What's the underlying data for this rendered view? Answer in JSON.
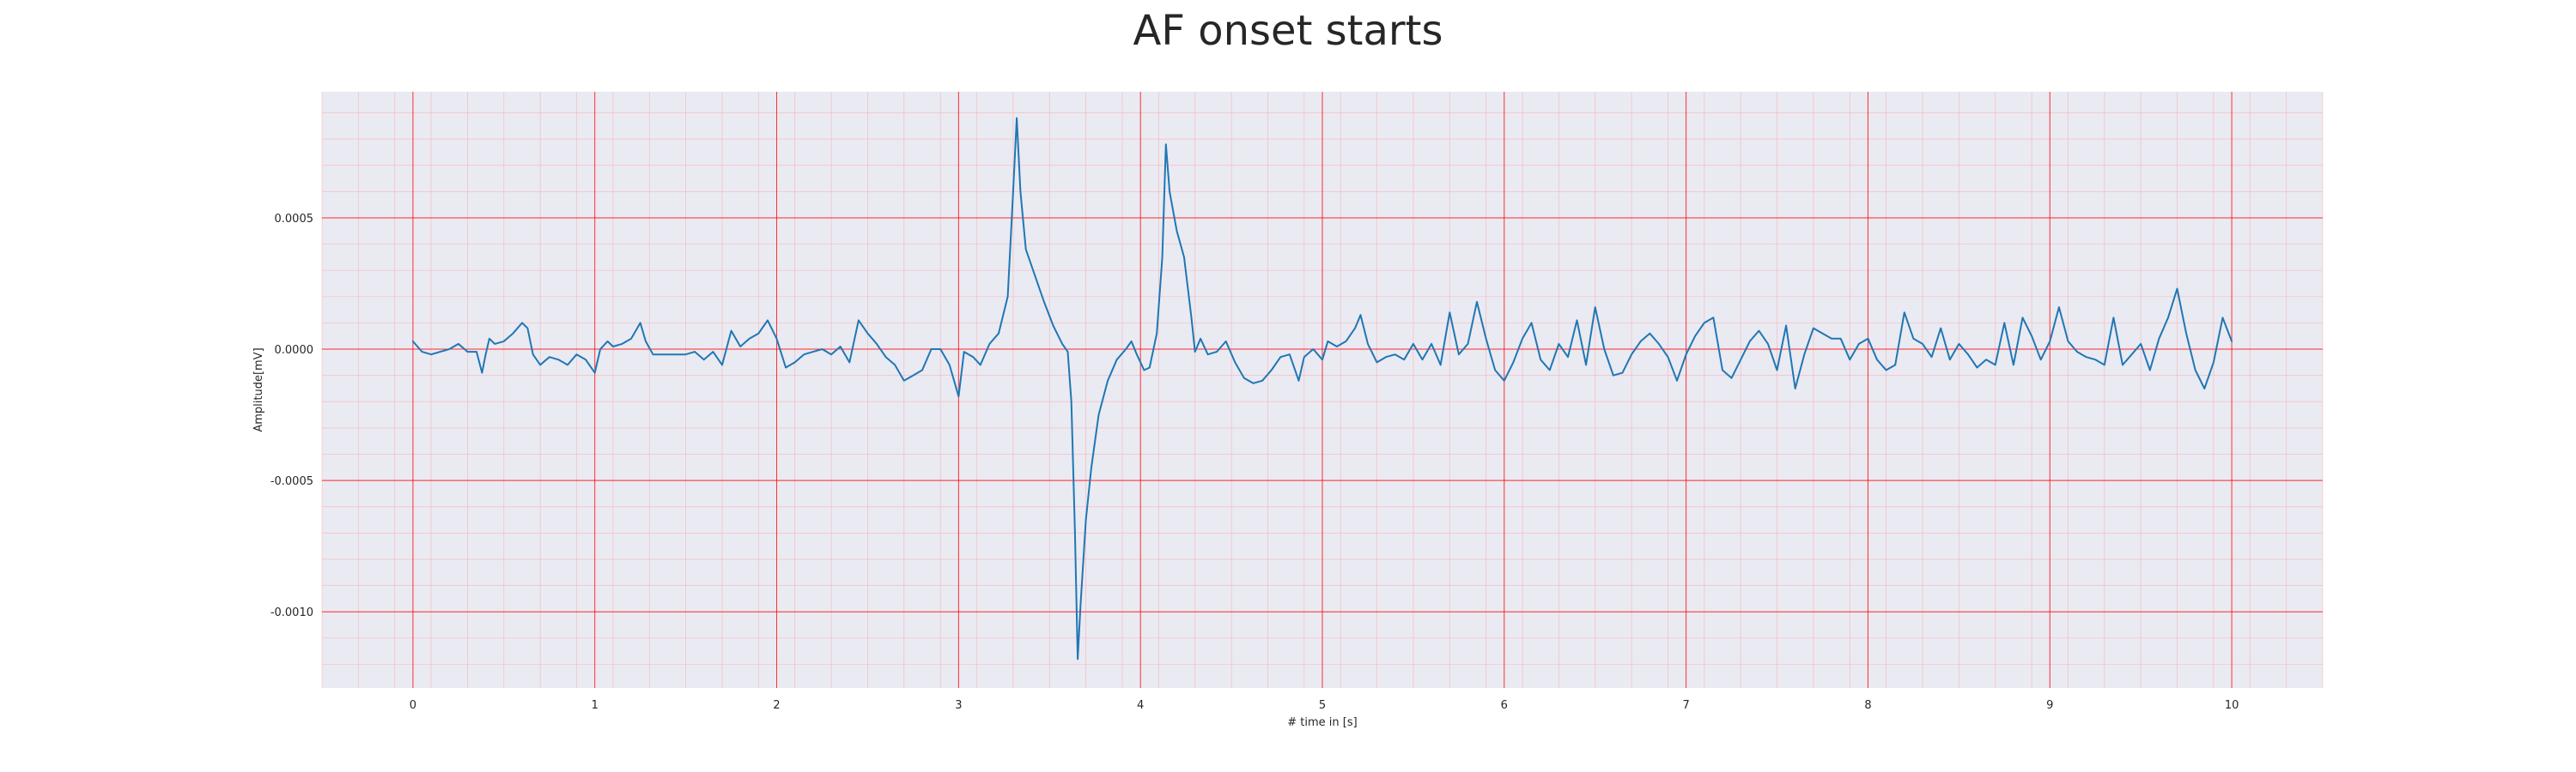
{
  "chart_data": {
    "type": "line",
    "title": "AF onset starts",
    "xlabel": "# time in [s]",
    "ylabel": "Amplitude[mV]",
    "xlim": [
      -0.5,
      10.5
    ],
    "ylim": [
      -0.00129,
      0.00098
    ],
    "xticks": [
      0,
      1,
      2,
      3,
      4,
      5,
      6,
      7,
      8,
      9,
      10
    ],
    "xtick_labels": [
      "0",
      "1",
      "2",
      "3",
      "4",
      "5",
      "6",
      "7",
      "8",
      "9",
      "10"
    ],
    "yticks": [
      0.0005,
      0.0,
      -0.0005,
      -0.001
    ],
    "ytick_labels": [
      "0.0005",
      "0.0000",
      "-0.0005",
      "-0.0010"
    ],
    "grid": {
      "major": true,
      "minor": true,
      "major_color": "#ff0000",
      "minor_color": "#ff9999"
    },
    "background_color": "#eaeaf2",
    "series": [
      {
        "color": "#1f77b4",
        "points": [
          [
            0.0,
            3e-05
          ],
          [
            0.05,
            -1e-05
          ],
          [
            0.1,
            -2e-05
          ],
          [
            0.15,
            -1e-05
          ],
          [
            0.2,
            0.0
          ],
          [
            0.25,
            2e-05
          ],
          [
            0.3,
            -1e-05
          ],
          [
            0.35,
            -1e-05
          ],
          [
            0.38,
            -9e-05
          ],
          [
            0.4,
            -2e-05
          ],
          [
            0.42,
            4e-05
          ],
          [
            0.45,
            2e-05
          ],
          [
            0.5,
            3e-05
          ],
          [
            0.55,
            6e-05
          ],
          [
            0.6,
            0.0001
          ],
          [
            0.63,
            8e-05
          ],
          [
            0.66,
            -2e-05
          ],
          [
            0.7,
            -6e-05
          ],
          [
            0.75,
            -3e-05
          ],
          [
            0.8,
            -4e-05
          ],
          [
            0.85,
            -6e-05
          ],
          [
            0.9,
            -2e-05
          ],
          [
            0.95,
            -4e-05
          ],
          [
            1.0,
            -9e-05
          ],
          [
            1.03,
            0.0
          ],
          [
            1.07,
            3e-05
          ],
          [
            1.1,
            1e-05
          ],
          [
            1.15,
            2e-05
          ],
          [
            1.2,
            4e-05
          ],
          [
            1.25,
            0.0001
          ],
          [
            1.28,
            3e-05
          ],
          [
            1.32,
            -2e-05
          ],
          [
            1.4,
            -2e-05
          ],
          [
            1.5,
            -2e-05
          ],
          [
            1.55,
            -1e-05
          ],
          [
            1.6,
            -4e-05
          ],
          [
            1.65,
            -1e-05
          ],
          [
            1.7,
            -6e-05
          ],
          [
            1.75,
            7e-05
          ],
          [
            1.8,
            1e-05
          ],
          [
            1.85,
            4e-05
          ],
          [
            1.9,
            6e-05
          ],
          [
            1.95,
            0.00011
          ],
          [
            2.0,
            4e-05
          ],
          [
            2.05,
            -7e-05
          ],
          [
            2.1,
            -5e-05
          ],
          [
            2.15,
            -2e-05
          ],
          [
            2.2,
            -1e-05
          ],
          [
            2.25,
            0.0
          ],
          [
            2.3,
            -2e-05
          ],
          [
            2.35,
            1e-05
          ],
          [
            2.4,
            -5e-05
          ],
          [
            2.45,
            0.00011
          ],
          [
            2.5,
            6e-05
          ],
          [
            2.55,
            2e-05
          ],
          [
            2.6,
            -3e-05
          ],
          [
            2.65,
            -6e-05
          ],
          [
            2.7,
            -0.00012
          ],
          [
            2.75,
            -0.0001
          ],
          [
            2.8,
            -8e-05
          ],
          [
            2.85,
            0.0
          ],
          [
            2.9,
            0.0
          ],
          [
            2.95,
            -6e-05
          ],
          [
            3.0,
            -0.00018
          ],
          [
            3.03,
            -1e-05
          ],
          [
            3.08,
            -3e-05
          ],
          [
            3.12,
            -6e-05
          ],
          [
            3.17,
            2e-05
          ],
          [
            3.22,
            6e-05
          ],
          [
            3.27,
            0.0002
          ],
          [
            3.3,
            0.0006
          ],
          [
            3.32,
            0.00088
          ],
          [
            3.34,
            0.0006
          ],
          [
            3.37,
            0.00038
          ],
          [
            3.42,
            0.00028
          ],
          [
            3.47,
            0.00018
          ],
          [
            3.52,
            9e-05
          ],
          [
            3.57,
            2e-05
          ],
          [
            3.6,
            -1e-05
          ],
          [
            3.62,
            -0.0002
          ],
          [
            3.64,
            -0.0007
          ],
          [
            3.655,
            -0.00118
          ],
          [
            3.67,
            -0.00098
          ],
          [
            3.7,
            -0.00065
          ],
          [
            3.73,
            -0.00045
          ],
          [
            3.77,
            -0.00025
          ],
          [
            3.82,
            -0.00012
          ],
          [
            3.87,
            -4e-05
          ],
          [
            3.92,
            0.0
          ],
          [
            3.95,
            3e-05
          ],
          [
            3.98,
            -2e-05
          ],
          [
            4.02,
            -8e-05
          ],
          [
            4.05,
            -7e-05
          ],
          [
            4.09,
            6e-05
          ],
          [
            4.12,
            0.00035
          ],
          [
            4.14,
            0.00078
          ],
          [
            4.16,
            0.0006
          ],
          [
            4.2,
            0.00045
          ],
          [
            4.24,
            0.00035
          ],
          [
            4.28,
            0.00012
          ],
          [
            4.3,
            -1e-05
          ],
          [
            4.33,
            4e-05
          ],
          [
            4.37,
            -2e-05
          ],
          [
            4.42,
            -1e-05
          ],
          [
            4.47,
            3e-05
          ],
          [
            4.52,
            -5e-05
          ],
          [
            4.57,
            -0.00011
          ],
          [
            4.62,
            -0.00013
          ],
          [
            4.67,
            -0.00012
          ],
          [
            4.72,
            -8e-05
          ],
          [
            4.77,
            -3e-05
          ],
          [
            4.82,
            -2e-05
          ],
          [
            4.87,
            -0.00012
          ],
          [
            4.9,
            -3e-05
          ],
          [
            4.95,
            0.0
          ],
          [
            5.0,
            -4e-05
          ],
          [
            5.03,
            3e-05
          ],
          [
            5.08,
            1e-05
          ],
          [
            5.13,
            3e-05
          ],
          [
            5.18,
            8e-05
          ],
          [
            5.21,
            0.00013
          ],
          [
            5.25,
            2e-05
          ],
          [
            5.3,
            -5e-05
          ],
          [
            5.35,
            -3e-05
          ],
          [
            5.4,
            -2e-05
          ],
          [
            5.45,
            -4e-05
          ],
          [
            5.5,
            2e-05
          ],
          [
            5.55,
            -4e-05
          ],
          [
            5.6,
            2e-05
          ],
          [
            5.65,
            -6e-05
          ],
          [
            5.7,
            0.00014
          ],
          [
            5.75,
            -2e-05
          ],
          [
            5.8,
            2e-05
          ],
          [
            5.85,
            0.00018
          ],
          [
            5.9,
            4e-05
          ],
          [
            5.95,
            -8e-05
          ],
          [
            6.0,
            -0.00012
          ],
          [
            6.05,
            -5e-05
          ],
          [
            6.1,
            4e-05
          ],
          [
            6.15,
            0.0001
          ],
          [
            6.2,
            -4e-05
          ],
          [
            6.25,
            -8e-05
          ],
          [
            6.3,
            2e-05
          ],
          [
            6.35,
            -3e-05
          ],
          [
            6.4,
            0.00011
          ],
          [
            6.45,
            -6e-05
          ],
          [
            6.5,
            0.00016
          ],
          [
            6.55,
            0.0
          ],
          [
            6.6,
            -0.0001
          ],
          [
            6.65,
            -9e-05
          ],
          [
            6.7,
            -2e-05
          ],
          [
            6.75,
            3e-05
          ],
          [
            6.8,
            6e-05
          ],
          [
            6.85,
            2e-05
          ],
          [
            6.9,
            -3e-05
          ],
          [
            6.95,
            -0.00012
          ],
          [
            7.0,
            -2e-05
          ],
          [
            7.05,
            5e-05
          ],
          [
            7.1,
            0.0001
          ],
          [
            7.15,
            0.00012
          ],
          [
            7.2,
            -8e-05
          ],
          [
            7.25,
            -0.00011
          ],
          [
            7.3,
            -4e-05
          ],
          [
            7.35,
            3e-05
          ],
          [
            7.4,
            7e-05
          ],
          [
            7.45,
            2e-05
          ],
          [
            7.5,
            -8e-05
          ],
          [
            7.55,
            9e-05
          ],
          [
            7.6,
            -0.00015
          ],
          [
            7.65,
            -2e-05
          ],
          [
            7.7,
            8e-05
          ],
          [
            7.75,
            6e-05
          ],
          [
            7.8,
            4e-05
          ],
          [
            7.85,
            4e-05
          ],
          [
            7.9,
            -4e-05
          ],
          [
            7.95,
            2e-05
          ],
          [
            8.0,
            4e-05
          ],
          [
            8.05,
            -4e-05
          ],
          [
            8.1,
            -8e-05
          ],
          [
            8.15,
            -6e-05
          ],
          [
            8.2,
            0.00014
          ],
          [
            8.25,
            4e-05
          ],
          [
            8.3,
            2e-05
          ],
          [
            8.35,
            -3e-05
          ],
          [
            8.4,
            8e-05
          ],
          [
            8.45,
            -4e-05
          ],
          [
            8.5,
            2e-05
          ],
          [
            8.55,
            -2e-05
          ],
          [
            8.6,
            -7e-05
          ],
          [
            8.65,
            -4e-05
          ],
          [
            8.7,
            -6e-05
          ],
          [
            8.75,
            0.0001
          ],
          [
            8.8,
            -6e-05
          ],
          [
            8.85,
            0.00012
          ],
          [
            8.9,
            5e-05
          ],
          [
            8.95,
            -4e-05
          ],
          [
            9.0,
            3e-05
          ],
          [
            9.05,
            0.00016
          ],
          [
            9.1,
            3e-05
          ],
          [
            9.15,
            -1e-05
          ],
          [
            9.2,
            -3e-05
          ],
          [
            9.25,
            -4e-05
          ],
          [
            9.3,
            -6e-05
          ],
          [
            9.35,
            0.00012
          ],
          [
            9.4,
            -6e-05
          ],
          [
            9.45,
            -2e-05
          ],
          [
            9.5,
            2e-05
          ],
          [
            9.55,
            -8e-05
          ],
          [
            9.6,
            4e-05
          ],
          [
            9.65,
            0.00012
          ],
          [
            9.7,
            0.00023
          ],
          [
            9.75,
            6e-05
          ],
          [
            9.8,
            -8e-05
          ],
          [
            9.85,
            -0.00015
          ],
          [
            9.9,
            -5e-05
          ],
          [
            9.95,
            0.00012
          ],
          [
            10.0,
            3e-05
          ]
        ]
      }
    ]
  }
}
